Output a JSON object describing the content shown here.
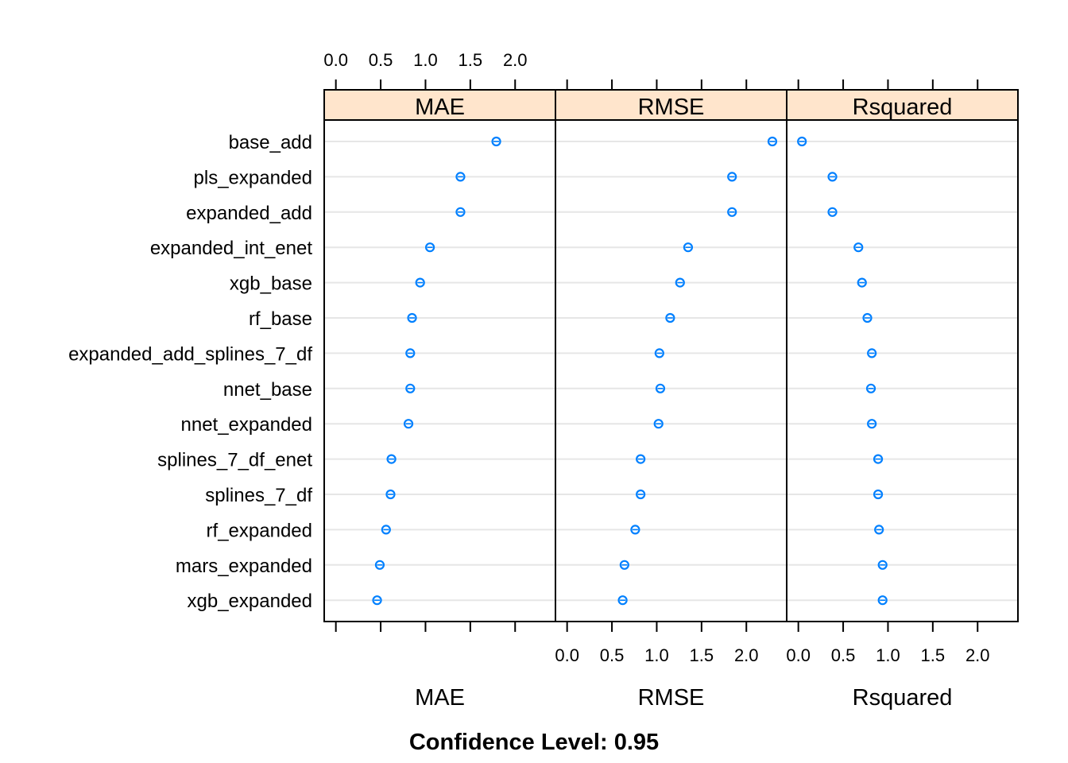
{
  "chart_data": {
    "type": "dotplot",
    "footer": "Confidence Level: 0.95",
    "models": [
      "base_add",
      "pls_expanded",
      "expanded_add",
      "expanded_int_enet",
      "xgb_base",
      "rf_base",
      "expanded_add_splines_7_df",
      "nnet_base",
      "nnet_expanded",
      "splines_7_df_enet",
      "splines_7_df",
      "rf_expanded",
      "mars_expanded",
      "xgb_expanded"
    ],
    "xlim": [
      -0.13,
      2.45
    ],
    "ticks": [
      "0.0",
      "0.5",
      "1.0",
      "1.5",
      "2.0"
    ],
    "tick_values": [
      0,
      0.5,
      1,
      1.5,
      2
    ],
    "panels": [
      {
        "name": "MAE",
        "strip_label": "MAE",
        "bottom_label": "MAE",
        "values": [
          1.79,
          1.39,
          1.39,
          1.05,
          0.94,
          0.85,
          0.83,
          0.83,
          0.81,
          0.62,
          0.61,
          0.56,
          0.49,
          0.46
        ]
      },
      {
        "name": "RMSE",
        "strip_label": "RMSE",
        "bottom_label": "RMSE",
        "values": [
          2.29,
          1.84,
          1.84,
          1.35,
          1.26,
          1.15,
          1.03,
          1.04,
          1.02,
          0.82,
          0.82,
          0.76,
          0.64,
          0.62
        ]
      },
      {
        "name": "Rsquared",
        "strip_label": "Rsquared",
        "bottom_label": "Rsquared",
        "values": [
          0.04,
          0.38,
          0.38,
          0.67,
          0.71,
          0.77,
          0.82,
          0.81,
          0.82,
          0.89,
          0.89,
          0.9,
          0.94,
          0.94
        ]
      }
    ],
    "tick_label_positions": [
      "top-middle",
      "bottom-left",
      "bottom-right"
    ],
    "colors": {
      "strip": "#ffe5cc",
      "point": "#0080ff",
      "gridline": "#e6e6e6",
      "frame": "#000000"
    }
  }
}
